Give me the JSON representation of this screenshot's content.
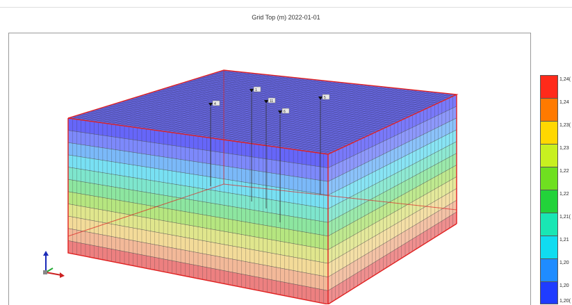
{
  "title": "Grid Top (m) 2022-01-01",
  "wells": [
    {
      "label": "1"
    },
    {
      "label": "4"
    },
    {
      "label": "11"
    },
    {
      "label": "6"
    },
    {
      "label": "5"
    }
  ],
  "colorbar": {
    "labels": [
      "1,24(",
      "1,24",
      "1,23(",
      "1,23",
      "1,22",
      "1,22",
      "1,21(",
      "1,21",
      "1,20",
      "1,20",
      "1,20("
    ],
    "colors": [
      "#ff2a1a",
      "#ff7a00",
      "#ffd800",
      "#c8f020",
      "#6fe020",
      "#22d23a",
      "#19e6b4",
      "#10dcf0",
      "#1f8cff",
      "#1f3cff"
    ]
  },
  "layer_colors": [
    "#4040f8",
    "#5c6cfa",
    "#5aa8f8",
    "#56d8f0",
    "#5ee0c0",
    "#70e088",
    "#a4e060",
    "#d8e070",
    "#f0d280",
    "#f0a880",
    "#e86060"
  ],
  "axis_colors": {
    "z": "#1a2ab8",
    "x": "#cc2222",
    "y": "#22aa33"
  }
}
